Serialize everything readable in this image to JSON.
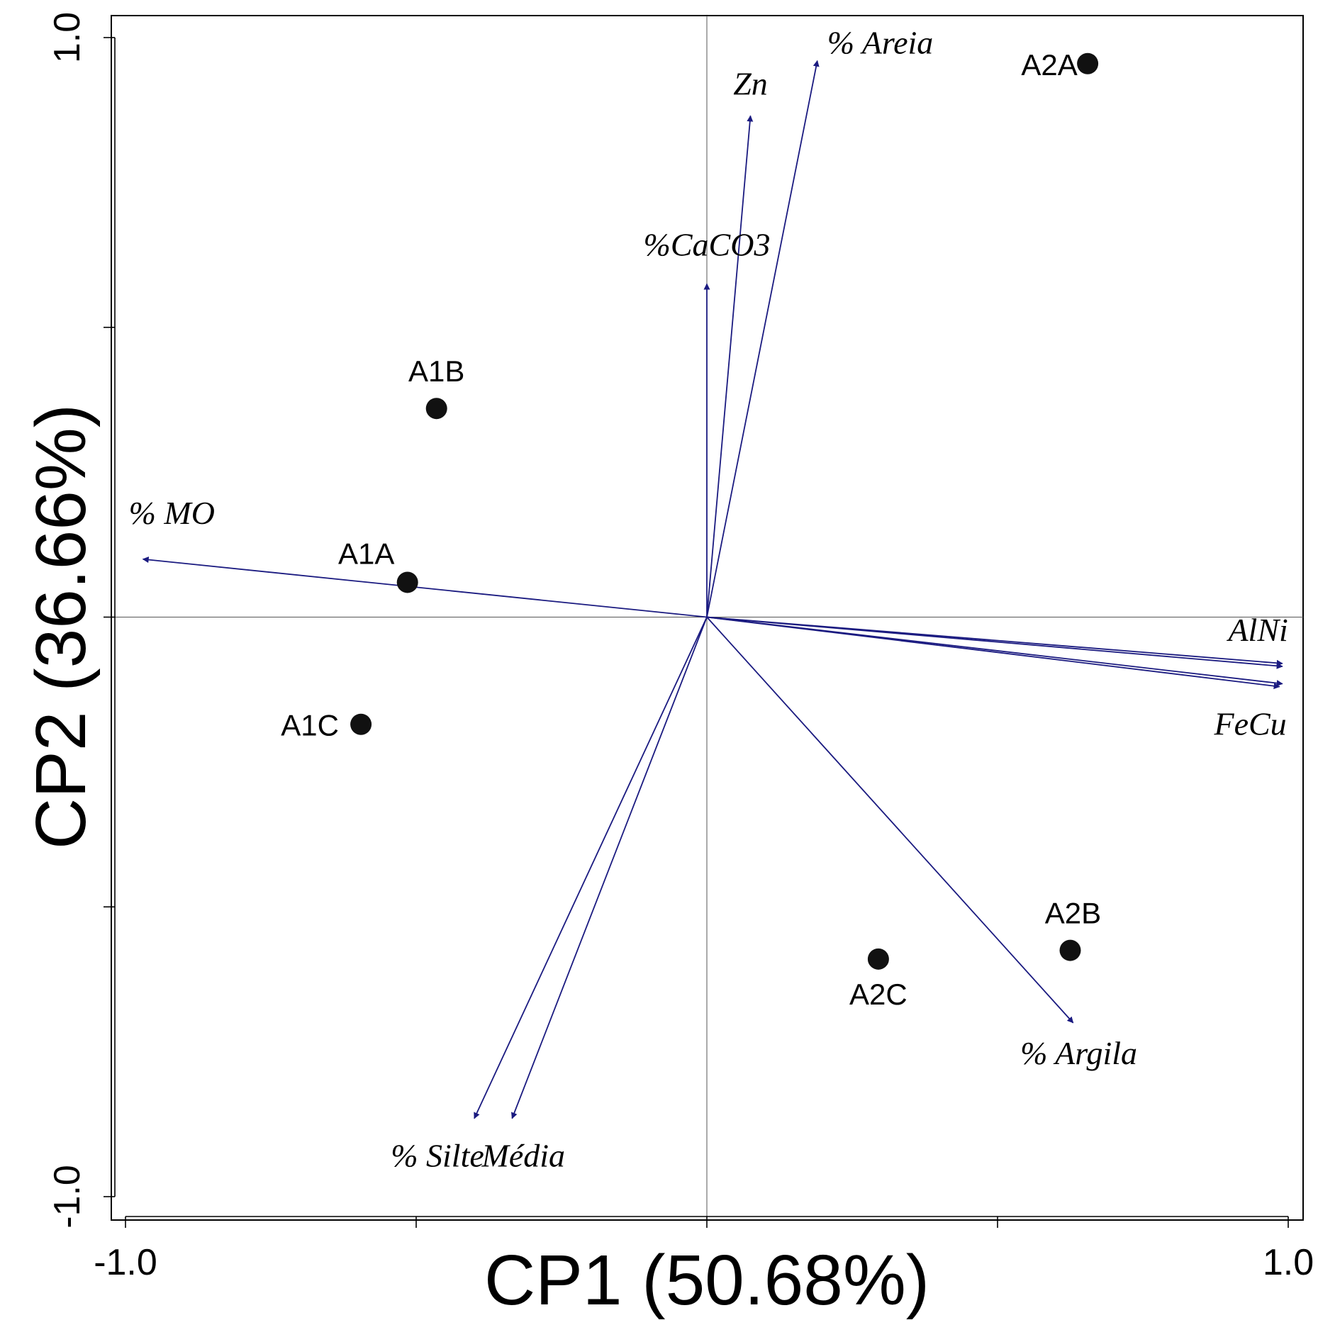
{
  "chart_data": {
    "type": "scatter",
    "title": "",
    "xlabel": "CP1 (50.68%)",
    "ylabel": "CP2 (36.66%)",
    "xlim": [
      -1.0,
      1.0
    ],
    "ylim": [
      -1.0,
      1.0
    ],
    "x_ticks": [
      -1.0,
      -0.5,
      0.0,
      0.5,
      1.0
    ],
    "y_ticks": [
      -1.0,
      -0.5,
      0.0,
      0.5,
      1.0
    ],
    "x_tick_labels": [
      "-1.0",
      "1.0"
    ],
    "y_tick_labels": [
      "-1.0",
      "1.0"
    ],
    "grid": false,
    "reference_lines": [
      0,
      0
    ],
    "colors": {
      "vectors": "#1a1a80",
      "points": "#111111"
    },
    "points": [
      {
        "name": "A2A",
        "x": 0.655,
        "y": 0.955
      },
      {
        "name": "A1B",
        "x": -0.465,
        "y": 0.36
      },
      {
        "name": "A1A",
        "x": -0.515,
        "y": 0.06
      },
      {
        "name": "A1C",
        "x": -0.595,
        "y": -0.185
      },
      {
        "name": "A2B",
        "x": 0.625,
        "y": -0.575
      },
      {
        "name": "A2C",
        "x": 0.295,
        "y": -0.59
      }
    ],
    "vectors": [
      {
        "name": "% Areia",
        "x": 0.19,
        "y": 0.96
      },
      {
        "name": "Zn",
        "x": 0.075,
        "y": 0.865
      },
      {
        "name": "%CaCO3",
        "x": 0.0,
        "y": 0.575
      },
      {
        "name": "% MO",
        "x": -0.97,
        "y": 0.1
      },
      {
        "name": "AlNi",
        "x": 0.99,
        "y": -0.08
      },
      {
        "name": "",
        "x": 0.99,
        "y": -0.085
      },
      {
        "name": "",
        "x": 0.99,
        "y": -0.115
      },
      {
        "name": "FeCu",
        "x": 0.985,
        "y": -0.12
      },
      {
        "name": "% Argila",
        "x": 0.63,
        "y": -0.7
      },
      {
        "name": "% Silte",
        "x": -0.4,
        "y": -0.865
      },
      {
        "name": "Média",
        "x": -0.335,
        "y": -0.865
      }
    ]
  }
}
